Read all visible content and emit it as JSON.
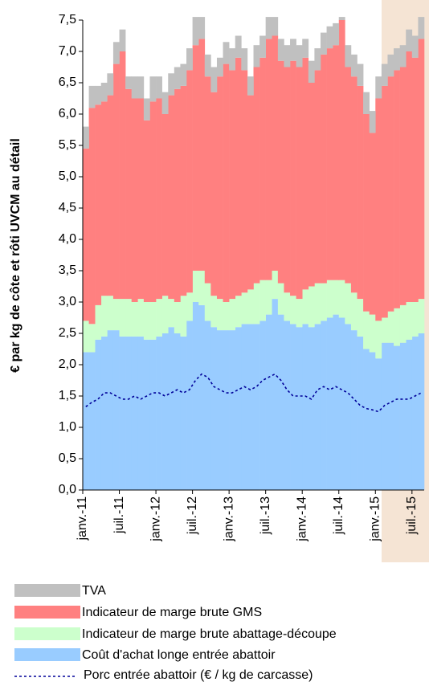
{
  "chart_data": {
    "type": "stacked-area-bar",
    "y_label": "€ par kg de côte et rôti UVCM au détail",
    "categories": [
      "janv.-11",
      null,
      null,
      null,
      null,
      null,
      "juil.-11",
      null,
      null,
      null,
      null,
      null,
      "janv.-12",
      null,
      null,
      null,
      null,
      null,
      "juil.-12",
      null,
      null,
      null,
      null,
      null,
      "janv.-13",
      null,
      null,
      null,
      null,
      null,
      "juil.-13",
      null,
      null,
      null,
      null,
      null,
      "janv.-14",
      null,
      null,
      null,
      null,
      null,
      "juil.-14",
      null,
      null,
      null,
      null,
      null,
      "janv.-15",
      null,
      null,
      null,
      null,
      null,
      "juil.-15",
      null
    ],
    "series": [
      {
        "name": "TVA",
        "color": "#c0c0c0",
        "type": "stack",
        "values": [
          0.35,
          0.35,
          0.3,
          0.3,
          0.35,
          0.35,
          0.35,
          0.2,
          0.35,
          0.35,
          0.35,
          0.4,
          0.35,
          0.35,
          0.35,
          0.35,
          0.35,
          0.35,
          0.45,
          0.35,
          0.35,
          0.4,
          0.3,
          0.35,
          0.35,
          0.35,
          0.35,
          0.3,
          0.35,
          0.35,
          0.35,
          0.3,
          0.35,
          0.35,
          0.35,
          0.35,
          0.3,
          0.35,
          0.35,
          0.35,
          0.35,
          0.35,
          0.05,
          0.35,
          0.35,
          0.35,
          0.35,
          0.35,
          0.35,
          0.35,
          0.35,
          0.35,
          0.35,
          0.35,
          0.35,
          0.35
        ]
      },
      {
        "name": "Indicateur de marge brute GMS",
        "color": "#ff8080",
        "type": "stack",
        "values": [
          2.75,
          3.45,
          3.2,
          3.1,
          3.2,
          3.75,
          3.95,
          3.35,
          3.25,
          3.2,
          2.9,
          3.2,
          3.2,
          2.9,
          3.25,
          3.4,
          3.35,
          3.55,
          3.6,
          3.7,
          3.3,
          3.25,
          3.55,
          3.8,
          3.65,
          3.8,
          3.55,
          3.1,
          3.45,
          3.55,
          3.85,
          3.75,
          3.55,
          3.6,
          3.75,
          3.7,
          3.7,
          3.25,
          3.4,
          3.65,
          3.7,
          3.75,
          4.15,
          3.45,
          3.45,
          3.4,
          3.15,
          2.9,
          3.55,
          3.7,
          3.75,
          3.8,
          3.8,
          4.0,
          3.9,
          4.15
        ]
      },
      {
        "name": "Indicateur de marge brute abattage-découpe",
        "color": "#ccffcc",
        "type": "stack",
        "values": [
          0.5,
          0.45,
          0.55,
          0.65,
          0.55,
          0.5,
          0.6,
          0.6,
          0.55,
          0.6,
          0.6,
          0.6,
          0.6,
          0.6,
          0.45,
          0.5,
          0.65,
          0.45,
          0.5,
          0.55,
          0.6,
          0.5,
          0.5,
          0.45,
          0.5,
          0.5,
          0.5,
          0.55,
          0.65,
          0.65,
          0.55,
          0.45,
          0.5,
          0.45,
          0.45,
          0.45,
          0.55,
          0.65,
          0.65,
          0.6,
          0.6,
          0.55,
          0.6,
          0.65,
          0.6,
          0.6,
          0.6,
          0.6,
          0.6,
          0.4,
          0.5,
          0.6,
          0.6,
          0.6,
          0.55,
          0.55
        ]
      },
      {
        "name": "Coût d'achat longe entrée abattoir",
        "color": "#99ccff",
        "type": "stack",
        "values": [
          2.2,
          2.2,
          2.4,
          2.45,
          2.55,
          2.55,
          2.45,
          2.45,
          2.45,
          2.45,
          2.4,
          2.4,
          2.45,
          2.5,
          2.6,
          2.5,
          2.45,
          2.7,
          3.0,
          2.95,
          2.7,
          2.6,
          2.55,
          2.55,
          2.55,
          2.6,
          2.65,
          2.65,
          2.65,
          2.7,
          2.8,
          3.05,
          2.8,
          2.7,
          2.65,
          2.6,
          2.65,
          2.6,
          2.65,
          2.7,
          2.75,
          2.8,
          2.75,
          2.65,
          2.55,
          2.45,
          2.25,
          2.2,
          2.1,
          2.35,
          2.35,
          2.3,
          2.35,
          2.4,
          2.45,
          2.5
        ]
      },
      {
        "name": "Porc entrée abattoir (€ / kg de carcasse)",
        "color": "#000099",
        "type": "line",
        "values": [
          1.33,
          1.4,
          1.45,
          1.55,
          1.55,
          1.5,
          1.45,
          1.45,
          1.5,
          1.45,
          1.5,
          1.55,
          1.55,
          1.5,
          1.55,
          1.6,
          1.55,
          1.6,
          1.75,
          1.85,
          1.8,
          1.65,
          1.6,
          1.55,
          1.55,
          1.6,
          1.65,
          1.6,
          1.65,
          1.75,
          1.8,
          1.85,
          1.75,
          1.6,
          1.5,
          1.5,
          1.5,
          1.45,
          1.6,
          1.65,
          1.6,
          1.65,
          1.6,
          1.55,
          1.45,
          1.35,
          1.3,
          1.28,
          1.25,
          1.35,
          1.4,
          1.45,
          1.45,
          1.45,
          1.5,
          1.55
        ]
      }
    ],
    "ylim": [
      0,
      7.5
    ],
    "yticks": [
      {
        "value": 0,
        "label": "0,0"
      },
      {
        "value": 0.5,
        "label": "0,5"
      },
      {
        "value": 1,
        "label": "1,0"
      },
      {
        "value": 1.5,
        "label": "1,5"
      },
      {
        "value": 2,
        "label": "2,0"
      },
      {
        "value": 2.5,
        "label": "2,5"
      },
      {
        "value": 3,
        "label": "3,0"
      },
      {
        "value": 3.5,
        "label": "3,5"
      },
      {
        "value": 4,
        "label": "4,0"
      },
      {
        "value": 4.5,
        "label": "4,5"
      },
      {
        "value": 5,
        "label": "5,0"
      },
      {
        "value": 5.5,
        "label": "5,5"
      },
      {
        "value": 6,
        "label": "6,0"
      },
      {
        "value": 6.5,
        "label": "6,5"
      },
      {
        "value": 7,
        "label": "7,0"
      },
      {
        "value": 7.5,
        "label": "7,5"
      }
    ],
    "grid": false
  }
}
